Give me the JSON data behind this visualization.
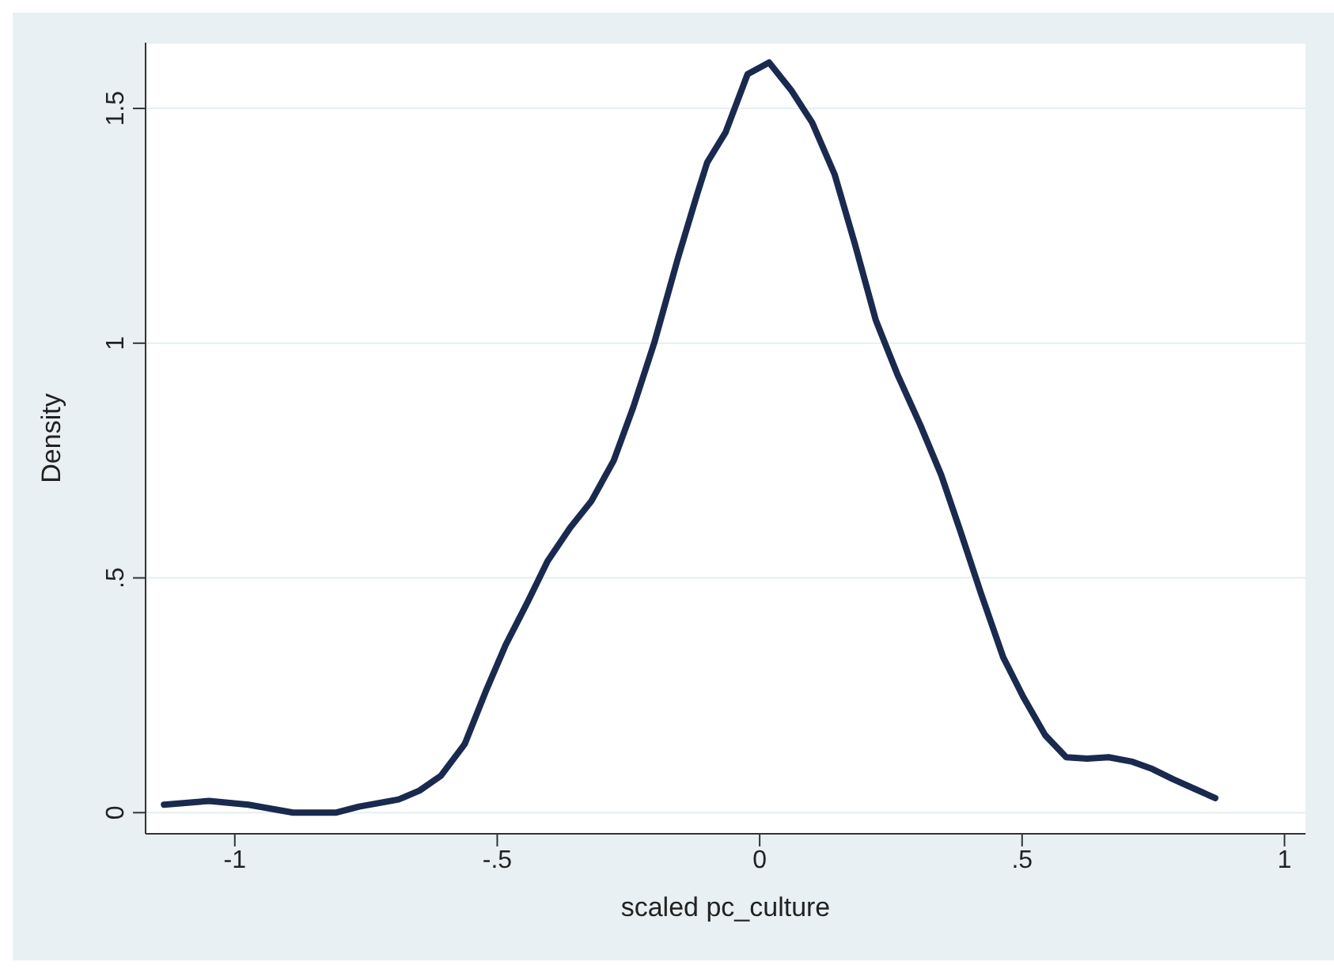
{
  "chart_data": {
    "type": "line",
    "xlabel": "scaled pc_culture",
    "ylabel": "Density",
    "xlim": [
      -1.17,
      1.04
    ],
    "ylim": [
      -0.045,
      1.64
    ],
    "xticks": [
      {
        "value": -1,
        "label": "-1"
      },
      {
        "value": -0.5,
        "label": "-.5"
      },
      0,
      {
        "value": 0.5,
        "label": ".5"
      },
      1
    ],
    "yticks": [
      0,
      {
        "value": 0.5,
        "label": ".5"
      },
      1,
      1.5
    ],
    "grid": "y",
    "marker": "none",
    "line_style": "solid",
    "series": [
      {
        "color": "#1a2a4f",
        "x": [
          -1.135,
          -1.049,
          -0.974,
          -0.889,
          -0.808,
          -0.763,
          -0.688,
          -0.648,
          -0.607,
          -0.562,
          -0.522,
          -0.484,
          -0.442,
          -0.404,
          -0.361,
          -0.321,
          -0.278,
          -0.241,
          -0.201,
          -0.156,
          -0.12,
          -0.1,
          -0.065,
          -0.023,
          0.018,
          0.06,
          0.1,
          0.143,
          0.181,
          0.221,
          0.263,
          0.306,
          0.346,
          0.382,
          0.422,
          0.464,
          0.502,
          0.544,
          0.584,
          0.624,
          0.665,
          0.708,
          0.748,
          0.788,
          0.828,
          0.868
        ],
        "values": [
          0.017,
          0.025,
          0.017,
          0.0,
          0.0,
          0.013,
          0.028,
          0.047,
          0.079,
          0.146,
          0.258,
          0.357,
          0.449,
          0.536,
          0.607,
          0.663,
          0.75,
          0.863,
          1.0,
          1.18,
          1.314,
          1.385,
          1.449,
          1.573,
          1.598,
          1.539,
          1.47,
          1.359,
          1.213,
          1.05,
          0.932,
          0.826,
          0.719,
          0.601,
          0.466,
          0.331,
          0.247,
          0.165,
          0.118,
          0.115,
          0.118,
          0.109,
          0.093,
          0.071,
          0.051,
          0.031
        ]
      }
    ]
  }
}
